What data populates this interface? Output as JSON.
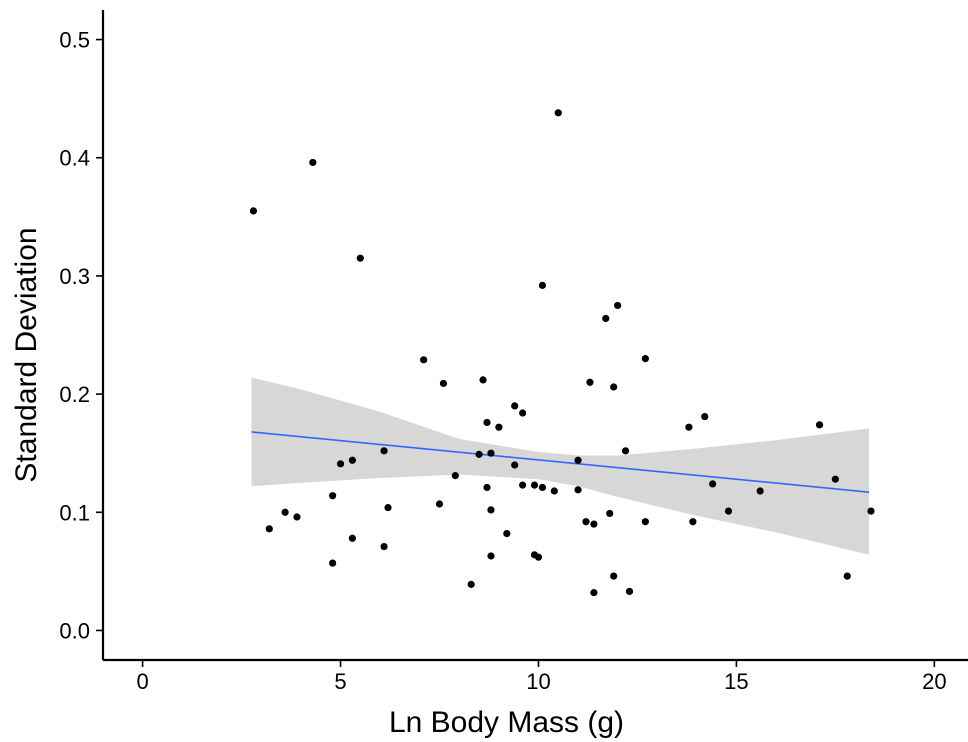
{
  "chart_data": {
    "type": "scatter",
    "title": "",
    "xlabel": "Ln Body Mass (g)",
    "ylabel": "Standard Deviation",
    "xlim": [
      -1,
      20.85
    ],
    "ylim": [
      -0.025,
      0.525
    ],
    "x_ticks": [
      0,
      5,
      10,
      15,
      20
    ],
    "y_ticks": [
      0.0,
      0.1,
      0.2,
      0.3,
      0.4,
      0.5
    ],
    "y_tick_labels": [
      "0.0",
      "0.1",
      "0.2",
      "0.3",
      "0.4",
      "0.5"
    ],
    "grid": false,
    "legend": "none",
    "points": [
      {
        "x": 2.8,
        "y": 0.355
      },
      {
        "x": 3.2,
        "y": 0.086
      },
      {
        "x": 3.6,
        "y": 0.1
      },
      {
        "x": 3.9,
        "y": 0.096
      },
      {
        "x": 4.3,
        "y": 0.396
      },
      {
        "x": 4.8,
        "y": 0.114
      },
      {
        "x": 4.8,
        "y": 0.057
      },
      {
        "x": 5.0,
        "y": 0.141
      },
      {
        "x": 5.3,
        "y": 0.144
      },
      {
        "x": 5.3,
        "y": 0.078
      },
      {
        "x": 5.5,
        "y": 0.315
      },
      {
        "x": 6.1,
        "y": 0.152
      },
      {
        "x": 6.1,
        "y": 0.071
      },
      {
        "x": 6.2,
        "y": 0.104
      },
      {
        "x": 7.1,
        "y": 0.229
      },
      {
        "x": 7.5,
        "y": 0.107
      },
      {
        "x": 7.6,
        "y": 0.209
      },
      {
        "x": 7.9,
        "y": 0.131
      },
      {
        "x": 8.3,
        "y": 0.039
      },
      {
        "x": 8.5,
        "y": 0.149
      },
      {
        "x": 8.6,
        "y": 0.212
      },
      {
        "x": 8.7,
        "y": 0.176
      },
      {
        "x": 8.7,
        "y": 0.121
      },
      {
        "x": 8.8,
        "y": 0.102
      },
      {
        "x": 8.8,
        "y": 0.063
      },
      {
        "x": 8.8,
        "y": 0.15
      },
      {
        "x": 9.0,
        "y": 0.172
      },
      {
        "x": 9.2,
        "y": 0.082
      },
      {
        "x": 9.4,
        "y": 0.19
      },
      {
        "x": 9.4,
        "y": 0.14
      },
      {
        "x": 9.6,
        "y": 0.184
      },
      {
        "x": 9.6,
        "y": 0.123
      },
      {
        "x": 9.9,
        "y": 0.123
      },
      {
        "x": 9.9,
        "y": 0.064
      },
      {
        "x": 10.0,
        "y": 0.062
      },
      {
        "x": 10.1,
        "y": 0.121
      },
      {
        "x": 10.1,
        "y": 0.292
      },
      {
        "x": 10.4,
        "y": 0.118
      },
      {
        "x": 10.5,
        "y": 0.438
      },
      {
        "x": 11.0,
        "y": 0.144
      },
      {
        "x": 11.0,
        "y": 0.119
      },
      {
        "x": 11.2,
        "y": 0.092
      },
      {
        "x": 11.3,
        "y": 0.21
      },
      {
        "x": 11.4,
        "y": 0.032
      },
      {
        "x": 11.4,
        "y": 0.09
      },
      {
        "x": 11.7,
        "y": 0.264
      },
      {
        "x": 11.8,
        "y": 0.099
      },
      {
        "x": 11.9,
        "y": 0.206
      },
      {
        "x": 11.9,
        "y": 0.046
      },
      {
        "x": 12.0,
        "y": 0.275
      },
      {
        "x": 12.2,
        "y": 0.152
      },
      {
        "x": 12.3,
        "y": 0.033
      },
      {
        "x": 12.7,
        "y": 0.23
      },
      {
        "x": 12.7,
        "y": 0.092
      },
      {
        "x": 13.8,
        "y": 0.172
      },
      {
        "x": 13.9,
        "y": 0.092
      },
      {
        "x": 14.2,
        "y": 0.181
      },
      {
        "x": 14.4,
        "y": 0.124
      },
      {
        "x": 14.8,
        "y": 0.101
      },
      {
        "x": 15.6,
        "y": 0.118
      },
      {
        "x": 17.1,
        "y": 0.174
      },
      {
        "x": 17.5,
        "y": 0.128
      },
      {
        "x": 17.8,
        "y": 0.046
      },
      {
        "x": 18.4,
        "y": 0.101
      }
    ],
    "trend_line": {
      "type": "linear",
      "x": [
        2.75,
        18.35
      ],
      "y": [
        0.168,
        0.117
      ],
      "color": "#3366ff"
    },
    "confidence_band": {
      "color": "#d3d3d3",
      "x": [
        2.75,
        4.0,
        6.0,
        8.0,
        10.0,
        11.0,
        12.0,
        14.0,
        16.0,
        18.35
      ],
      "lower": [
        0.122,
        0.125,
        0.129,
        0.132,
        0.128,
        0.122,
        0.113,
        0.097,
        0.083,
        0.064
      ],
      "upper": [
        0.214,
        0.204,
        0.185,
        0.162,
        0.151,
        0.148,
        0.148,
        0.154,
        0.161,
        0.171
      ]
    },
    "colors": {
      "points": "#000000",
      "axis": "#000000"
    }
  }
}
